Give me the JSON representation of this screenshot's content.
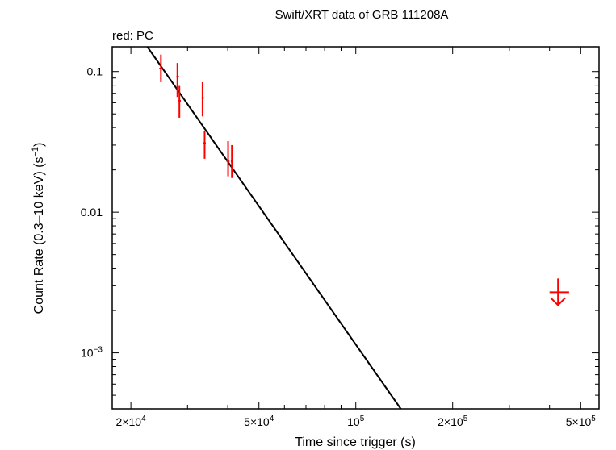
{
  "chart_data": {
    "type": "scatter",
    "title": "Swift/XRT data of GRB 111208A",
    "subtitle": "red: PC",
    "xlabel": "Time since trigger (s)",
    "ylabel_main": "Count Rate (0.3–10 keV) (s",
    "ylabel_sup": "−1",
    "ylabel_end": ")",
    "xscale": "log",
    "yscale": "log",
    "xlim": [
      17500,
      570000
    ],
    "ylim": [
      0.0004,
      0.15
    ],
    "x_ticks": [
      {
        "value": 20000,
        "mant": "2×10",
        "exp": "4"
      },
      {
        "value": 50000,
        "mant": "5×10",
        "exp": "4"
      },
      {
        "value": 100000,
        "mant": "10",
        "exp": "5"
      },
      {
        "value": 200000,
        "mant": "2×10",
        "exp": "5"
      },
      {
        "value": 500000,
        "mant": "5×10",
        "exp": "5"
      }
    ],
    "y_ticks": [
      {
        "value": 0.1,
        "mant": "0.1",
        "exp": ""
      },
      {
        "value": 0.01,
        "mant": "0.01",
        "exp": ""
      },
      {
        "value": 0.001,
        "mant": "10",
        "exp": "−3"
      }
    ],
    "series": [
      {
        "name": "PC",
        "color": "#ff0000",
        "points": [
          {
            "t": 24800,
            "rate": 0.105,
            "tlo": 24500,
            "thi": 25100,
            "rlo": 0.084,
            "rhi": 0.132
          },
          {
            "t": 27900,
            "rate": 0.092,
            "tlo": 27700,
            "thi": 28200,
            "rlo": 0.066,
            "rhi": 0.115
          },
          {
            "t": 28300,
            "rate": 0.062,
            "tlo": 28100,
            "thi": 28600,
            "rlo": 0.047,
            "rhi": 0.079
          },
          {
            "t": 33400,
            "rate": 0.065,
            "tlo": 33200,
            "thi": 33700,
            "rlo": 0.048,
            "rhi": 0.084
          },
          {
            "t": 33900,
            "rate": 0.031,
            "tlo": 33600,
            "thi": 34200,
            "rlo": 0.024,
            "rhi": 0.038
          },
          {
            "t": 40100,
            "rate": 0.023,
            "tlo": 39700,
            "thi": 40500,
            "rlo": 0.018,
            "rhi": 0.032
          },
          {
            "t": 41200,
            "rate": 0.023,
            "tlo": 40900,
            "thi": 41600,
            "rlo": 0.0175,
            "rhi": 0.03
          }
        ],
        "upper_limits": [
          {
            "t": 425000,
            "rate": 0.0027,
            "tlo": 400000,
            "thi": 460000
          }
        ]
      }
    ],
    "model": {
      "name": "power-law fit",
      "color": "#000000",
      "x": [
        22500,
        138000
      ],
      "y": [
        0.15,
        0.0004
      ]
    }
  }
}
